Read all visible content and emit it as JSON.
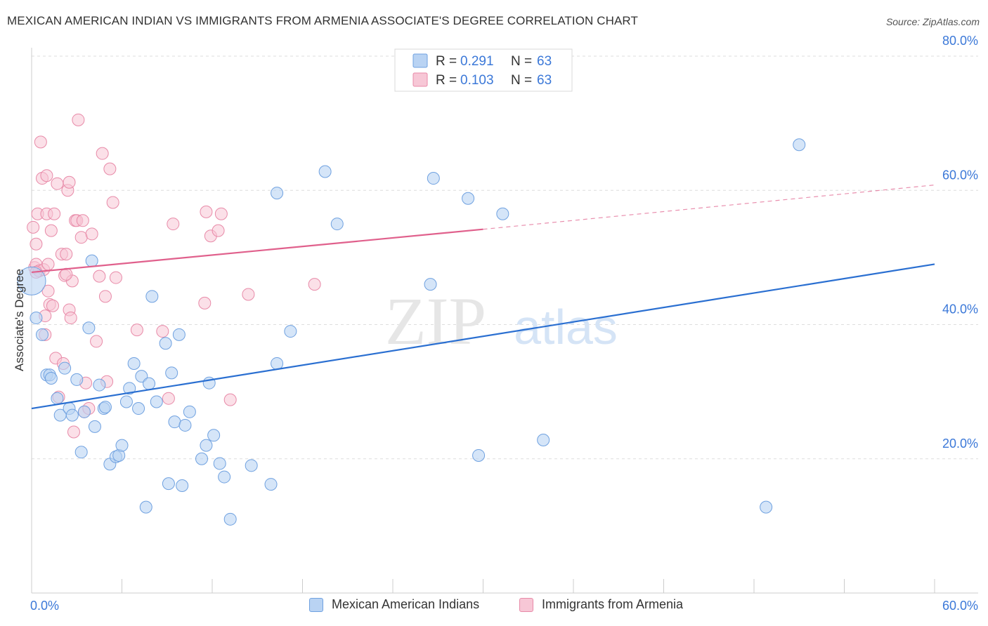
{
  "title": "MEXICAN AMERICAN INDIAN VS IMMIGRANTS FROM ARMENIA ASSOCIATE'S DEGREE CORRELATION CHART",
  "source": "Source: ZipAtlas.com",
  "watermark": {
    "zip": "ZIP",
    "atlas": "atlas"
  },
  "chart_data": {
    "type": "scatter",
    "title": "MEXICAN AMERICAN INDIAN VS IMMIGRANTS FROM ARMENIA ASSOCIATE'S DEGREE CORRELATION CHART",
    "xlabel": "",
    "ylabel": "Associate's Degree",
    "xlim": [
      0,
      60
    ],
    "ylim": [
      0,
      80
    ],
    "x_tick_labels": [
      "0.0%",
      "60.0%"
    ],
    "y_tick_labels": [
      {
        "value": 20,
        "label": "20.0%"
      },
      {
        "value": 40,
        "label": "40.0%"
      },
      {
        "value": 60,
        "label": "60.0%"
      },
      {
        "value": 80,
        "label": "80.0%"
      }
    ],
    "grid": true,
    "legend_position": "top-center",
    "series": [
      {
        "name": "Mexican American Indians",
        "color": "#6fa1e0",
        "fill": "#b9d3f3",
        "line_color": "#2a6fd1",
        "R": "0.291",
        "N": "63",
        "trend": {
          "x0": 0,
          "y0": 27.5,
          "x1": 60,
          "y1": 49.0
        },
        "points": [
          [
            0.0,
            46.5
          ],
          [
            0.3,
            41.0
          ],
          [
            0.7,
            38.5
          ],
          [
            1.0,
            32.5
          ],
          [
            1.2,
            32.5
          ],
          [
            1.3,
            32.0
          ],
          [
            1.7,
            29.0
          ],
          [
            1.9,
            26.5
          ],
          [
            2.2,
            33.5
          ],
          [
            2.5,
            27.5
          ],
          [
            2.7,
            26.5
          ],
          [
            3.0,
            31.8
          ],
          [
            3.3,
            21.0
          ],
          [
            3.5,
            27.0
          ],
          [
            3.8,
            39.5
          ],
          [
            4.0,
            49.5
          ],
          [
            4.2,
            24.8
          ],
          [
            4.5,
            31.0
          ],
          [
            4.8,
            27.5
          ],
          [
            4.9,
            27.7
          ],
          [
            5.2,
            19.2
          ],
          [
            5.6,
            20.3
          ],
          [
            5.8,
            20.5
          ],
          [
            6.0,
            22.0
          ],
          [
            6.3,
            28.5
          ],
          [
            6.5,
            30.5
          ],
          [
            6.8,
            34.2
          ],
          [
            7.1,
            27.5
          ],
          [
            7.3,
            32.3
          ],
          [
            7.6,
            12.8
          ],
          [
            7.8,
            31.2
          ],
          [
            8.0,
            44.2
          ],
          [
            8.3,
            28.5
          ],
          [
            8.9,
            37.2
          ],
          [
            9.1,
            16.3
          ],
          [
            9.3,
            32.8
          ],
          [
            9.5,
            25.5
          ],
          [
            9.8,
            38.5
          ],
          [
            10.0,
            16.0
          ],
          [
            10.2,
            25.0
          ],
          [
            10.5,
            27.0
          ],
          [
            11.3,
            20.0
          ],
          [
            11.6,
            22.0
          ],
          [
            11.8,
            31.3
          ],
          [
            12.1,
            23.5
          ],
          [
            12.5,
            19.3
          ],
          [
            12.8,
            17.3
          ],
          [
            13.2,
            11.0
          ],
          [
            14.6,
            19.0
          ],
          [
            15.9,
            16.2
          ],
          [
            16.3,
            34.2
          ],
          [
            16.3,
            59.6
          ],
          [
            17.2,
            39.0
          ],
          [
            19.5,
            62.8
          ],
          [
            20.3,
            55.0
          ],
          [
            26.5,
            46.0
          ],
          [
            26.7,
            61.8
          ],
          [
            29.0,
            58.8
          ],
          [
            29.7,
            20.5
          ],
          [
            31.3,
            56.5
          ],
          [
            34.0,
            22.8
          ],
          [
            48.8,
            12.8
          ],
          [
            51.0,
            66.8
          ]
        ]
      },
      {
        "name": "Immigrants from Armenia",
        "color": "#e88aa8",
        "fill": "#f7c7d6",
        "line_color": "#e0608c",
        "R": "0.103",
        "N": "63",
        "trend": {
          "x0": 0,
          "y0": 47.8,
          "x1": 30,
          "y1": 54.2
        },
        "trend_dashed": {
          "x0": 30,
          "y0": 54.2,
          "x1": 60,
          "y1": 60.8
        },
        "points": [
          [
            0.1,
            54.5
          ],
          [
            0.2,
            48.5
          ],
          [
            0.3,
            52.0
          ],
          [
            0.3,
            49.0
          ],
          [
            0.4,
            56.5
          ],
          [
            0.5,
            48.0
          ],
          [
            0.6,
            67.2
          ],
          [
            0.7,
            61.8
          ],
          [
            0.8,
            48.2
          ],
          [
            0.9,
            41.3
          ],
          [
            0.9,
            38.5
          ],
          [
            1.0,
            62.2
          ],
          [
            1.0,
            56.5
          ],
          [
            1.1,
            45.0
          ],
          [
            1.2,
            43.0
          ],
          [
            1.3,
            54.0
          ],
          [
            1.4,
            42.8
          ],
          [
            1.5,
            56.5
          ],
          [
            1.6,
            35.0
          ],
          [
            1.7,
            61.0
          ],
          [
            1.8,
            29.2
          ],
          [
            2.0,
            50.5
          ],
          [
            2.1,
            34.2
          ],
          [
            2.2,
            47.3
          ],
          [
            2.3,
            50.5
          ],
          [
            2.4,
            60.0
          ],
          [
            2.5,
            61.2
          ],
          [
            2.5,
            42.2
          ],
          [
            2.6,
            41.0
          ],
          [
            2.7,
            46.5
          ],
          [
            2.8,
            24.0
          ],
          [
            2.9,
            55.5
          ],
          [
            3.0,
            55.5
          ],
          [
            3.1,
            70.5
          ],
          [
            3.3,
            53.0
          ],
          [
            3.4,
            55.5
          ],
          [
            3.5,
            27.0
          ],
          [
            3.6,
            31.3
          ],
          [
            3.8,
            27.5
          ],
          [
            4.0,
            53.5
          ],
          [
            4.3,
            37.5
          ],
          [
            4.5,
            47.2
          ],
          [
            4.7,
            65.5
          ],
          [
            4.9,
            44.2
          ],
          [
            5.0,
            31.5
          ],
          [
            5.2,
            63.2
          ],
          [
            5.4,
            58.2
          ],
          [
            5.6,
            47.0
          ],
          [
            7.0,
            39.2
          ],
          [
            8.7,
            39.0
          ],
          [
            9.1,
            29.0
          ],
          [
            9.4,
            55.0
          ],
          [
            11.5,
            43.2
          ],
          [
            11.6,
            56.8
          ],
          [
            11.9,
            53.2
          ],
          [
            12.4,
            54.0
          ],
          [
            12.6,
            56.5
          ],
          [
            13.2,
            28.8
          ],
          [
            14.4,
            44.5
          ],
          [
            18.8,
            46.0
          ],
          [
            0.3,
            47.8
          ],
          [
            1.1,
            49.0
          ],
          [
            2.3,
            47.5
          ]
        ]
      }
    ]
  },
  "legend_top": {
    "r_label": "R =",
    "n_label": "N =",
    "entries": [
      {
        "r": "0.291",
        "n": "63"
      },
      {
        "r": "0.103",
        "n": "63"
      }
    ]
  },
  "legend_bottom": [
    {
      "label": "Mexican American Indians"
    },
    {
      "label": "Immigrants from Armenia"
    }
  ],
  "colors": {
    "blue_text": "#3b78d8",
    "grid": "#dddddd",
    "axis": "#cccccc"
  }
}
